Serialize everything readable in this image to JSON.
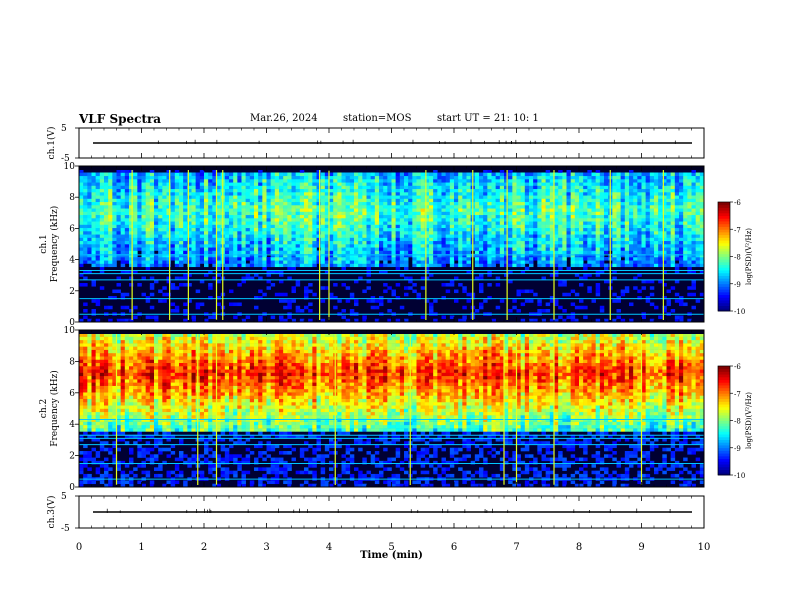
{
  "header": {
    "title": "VLF Spectra",
    "date": "Mar.26, 2024",
    "station": "station=MOS",
    "start": "start UT =  21: 10: 1"
  },
  "chart_data": [
    {
      "type": "line",
      "ylabel": "ch.1(V)",
      "ylim": [
        -5,
        5
      ],
      "yticks": [
        "5",
        "-5"
      ],
      "series": [
        {
          "x": [
            0,
            10
          ],
          "values": [
            0,
            0
          ]
        }
      ]
    },
    {
      "type": "heatmap",
      "ylabel_top": "ch.1",
      "ylabel": "Frequency (kHz)",
      "ylim": [
        0,
        10
      ],
      "yticks": [
        "0",
        "2",
        "4",
        "6",
        "8",
        "10"
      ],
      "colorbar": {
        "ticks": [
          "-6",
          "-7",
          "-8",
          "-9",
          "-10"
        ],
        "label": "log(PSD)(V²/Hz)",
        "range": [
          -10,
          -6
        ]
      },
      "emission_band_khz": [
        3.5,
        9.5
      ],
      "background_level": -9.7,
      "emission_level": -8.3,
      "bursts_min": [
        0.85,
        1.45,
        1.75,
        2.2,
        2.3,
        3.85,
        4.0,
        5.55,
        6.3,
        6.85,
        7.6,
        8.5,
        9.35
      ]
    },
    {
      "type": "heatmap",
      "ylabel_top": "ch.2",
      "ylabel": "Frequency (kHz)",
      "ylim": [
        0,
        10
      ],
      "yticks": [
        "0",
        "2",
        "4",
        "6",
        "8",
        "10"
      ],
      "colorbar": {
        "ticks": [
          "-6",
          "-7",
          "-8",
          "-9",
          "-10"
        ],
        "label": "log(PSD)(V²/Hz)",
        "range": [
          -10,
          -6
        ]
      },
      "emission_band_khz": [
        3.5,
        9.8
      ],
      "background_level": -9.5,
      "emission_level": -6.9,
      "bursts_min": [
        0.6,
        1.9,
        2.2,
        4.1,
        5.3,
        6.8,
        7.0,
        7.6,
        9.0
      ]
    },
    {
      "type": "line",
      "ylabel": "ch.3(V)",
      "ylim": [
        -5,
        5
      ],
      "yticks": [
        "5",
        "-5"
      ],
      "series": [
        {
          "x": [
            0,
            10
          ],
          "values": [
            0,
            0
          ]
        }
      ]
    }
  ],
  "xaxis": {
    "label": "Time (min)",
    "ticks": [
      "0",
      "1",
      "2",
      "3",
      "4",
      "5",
      "6",
      "7",
      "8",
      "9",
      "10"
    ],
    "xlim": [
      0,
      10
    ]
  }
}
